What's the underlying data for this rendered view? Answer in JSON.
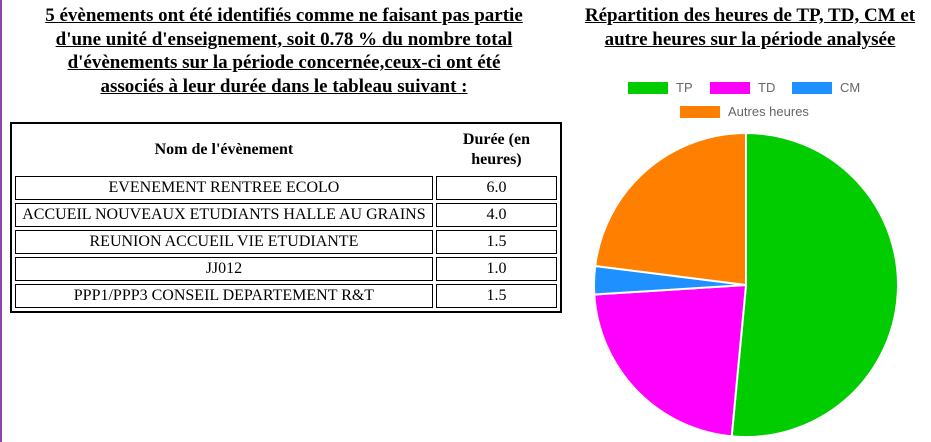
{
  "left_heading": {
    "line1": "5 évènements ont été identifiés comme ne faisant pas partie",
    "line2": "d'une unité d'enseignement, soit 0.78 % du nombre total",
    "line3": "d'évènements sur la période concernée,ceux-ci ont été",
    "line4": "associés à leur durée dans le tableau suivant :"
  },
  "right_heading": {
    "line1": "Répartition des heures de TP, TD, CM et",
    "line2": "autre heures sur la période analysée"
  },
  "table": {
    "headers": {
      "name": "Nom de l'évènement",
      "duration_1": "Durée (en",
      "duration_2": "heures)"
    },
    "rows": [
      {
        "name": "EVENEMENT RENTREE ECOLO",
        "duration": "6.0"
      },
      {
        "name": "ACCUEIL NOUVEAUX ETUDIANTS HALLE AU GRAINS",
        "duration": "4.0"
      },
      {
        "name": "REUNION ACCUEIL VIE ETUDIANTE",
        "duration": "1.5"
      },
      {
        "name": "JJ012",
        "duration": "1.0"
      },
      {
        "name": "PPP1/PPP3 CONSEIL DEPARTEMENT R&T",
        "duration": "1.5"
      }
    ]
  },
  "chart_data": {
    "type": "pie",
    "title": "",
    "legend_position": "top",
    "series": [
      {
        "name": "TP",
        "value": 51.5,
        "color": "#00cc00"
      },
      {
        "name": "TD",
        "value": 22.5,
        "color": "#ff00ff"
      },
      {
        "name": "CM",
        "value": 3.0,
        "color": "#1e90ff"
      },
      {
        "name": "Autres heures",
        "value": 23.0,
        "color": "#ff8000"
      }
    ]
  }
}
